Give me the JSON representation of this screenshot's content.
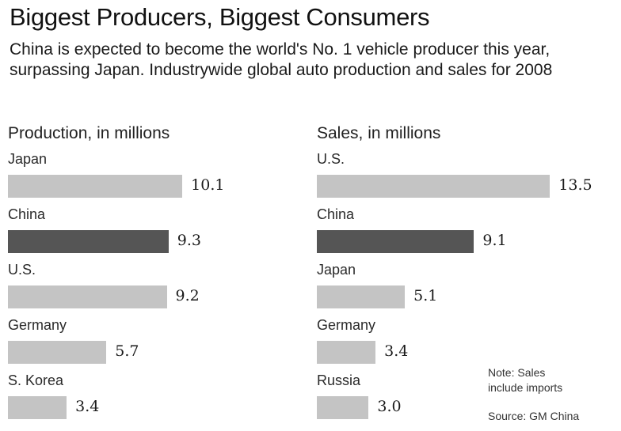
{
  "header": {
    "title": "Biggest Producers, Biggest Consumers",
    "subtitle": "China is expected to become the world's No. 1 vehicle producer this year, surpassing Japan. Industrywide global auto production and sales for 2008"
  },
  "colors": {
    "bar": "#c4c4c4",
    "highlight": "#555555"
  },
  "chart_data": [
    {
      "type": "bar",
      "orientation": "horizontal",
      "title": "Production, in millions",
      "categories": [
        "Japan",
        "China",
        "U.S.",
        "Germany",
        "S. Korea"
      ],
      "values": [
        10.1,
        9.3,
        9.2,
        5.7,
        3.4
      ],
      "value_labels": [
        "10.1",
        "9.3",
        "9.2",
        "5.7",
        "3.4"
      ],
      "highlight": "China"
    },
    {
      "type": "bar",
      "orientation": "horizontal",
      "title": "Sales, in millions",
      "categories": [
        "U.S.",
        "China",
        "Japan",
        "Germany",
        "Russia"
      ],
      "values": [
        13.5,
        9.1,
        5.1,
        3.4,
        3.0
      ],
      "value_labels": [
        "13.5",
        "9.1",
        "5.1",
        "3.4",
        "3.0"
      ],
      "highlight": "China"
    }
  ],
  "footer": {
    "note_line1": "Note: Sales",
    "note_line2": "include imports",
    "source": "Source: GM China"
  }
}
